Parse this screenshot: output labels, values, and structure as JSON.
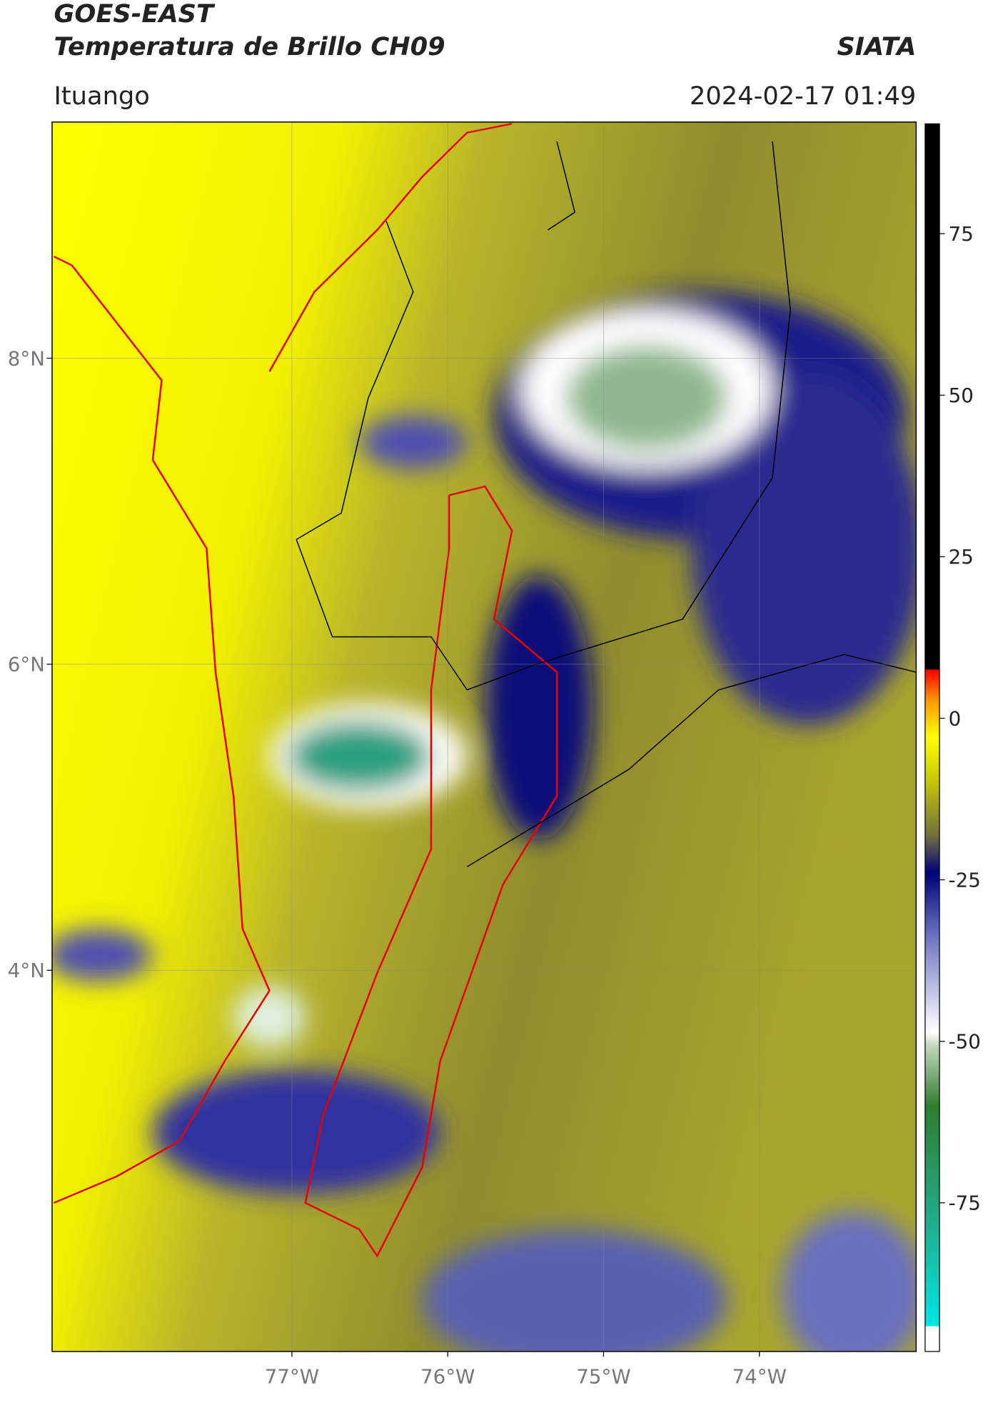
{
  "header": {
    "title": "GOES-EAST",
    "subtitle": "Temperatura de Brillo CH09",
    "source": "SIATA",
    "location": "Ituango",
    "datetime": "2024-02-17 01:49"
  },
  "map": {
    "lat_ticks": [
      {
        "value": 8,
        "label": "8°N"
      },
      {
        "value": 6,
        "label": "6°N"
      },
      {
        "value": 4,
        "label": "4°N"
      }
    ],
    "lon_ticks": [
      {
        "value": -77,
        "label": "77°W"
      },
      {
        "value": -76,
        "label": "76°W"
      },
      {
        "value": -75,
        "label": "75°W"
      },
      {
        "value": -74,
        "label": "74°W"
      }
    ]
  },
  "colorbar": {
    "range": [
      -98,
      92
    ],
    "ticks": [
      75,
      50,
      25,
      0,
      -25,
      -50,
      -75
    ]
  }
}
